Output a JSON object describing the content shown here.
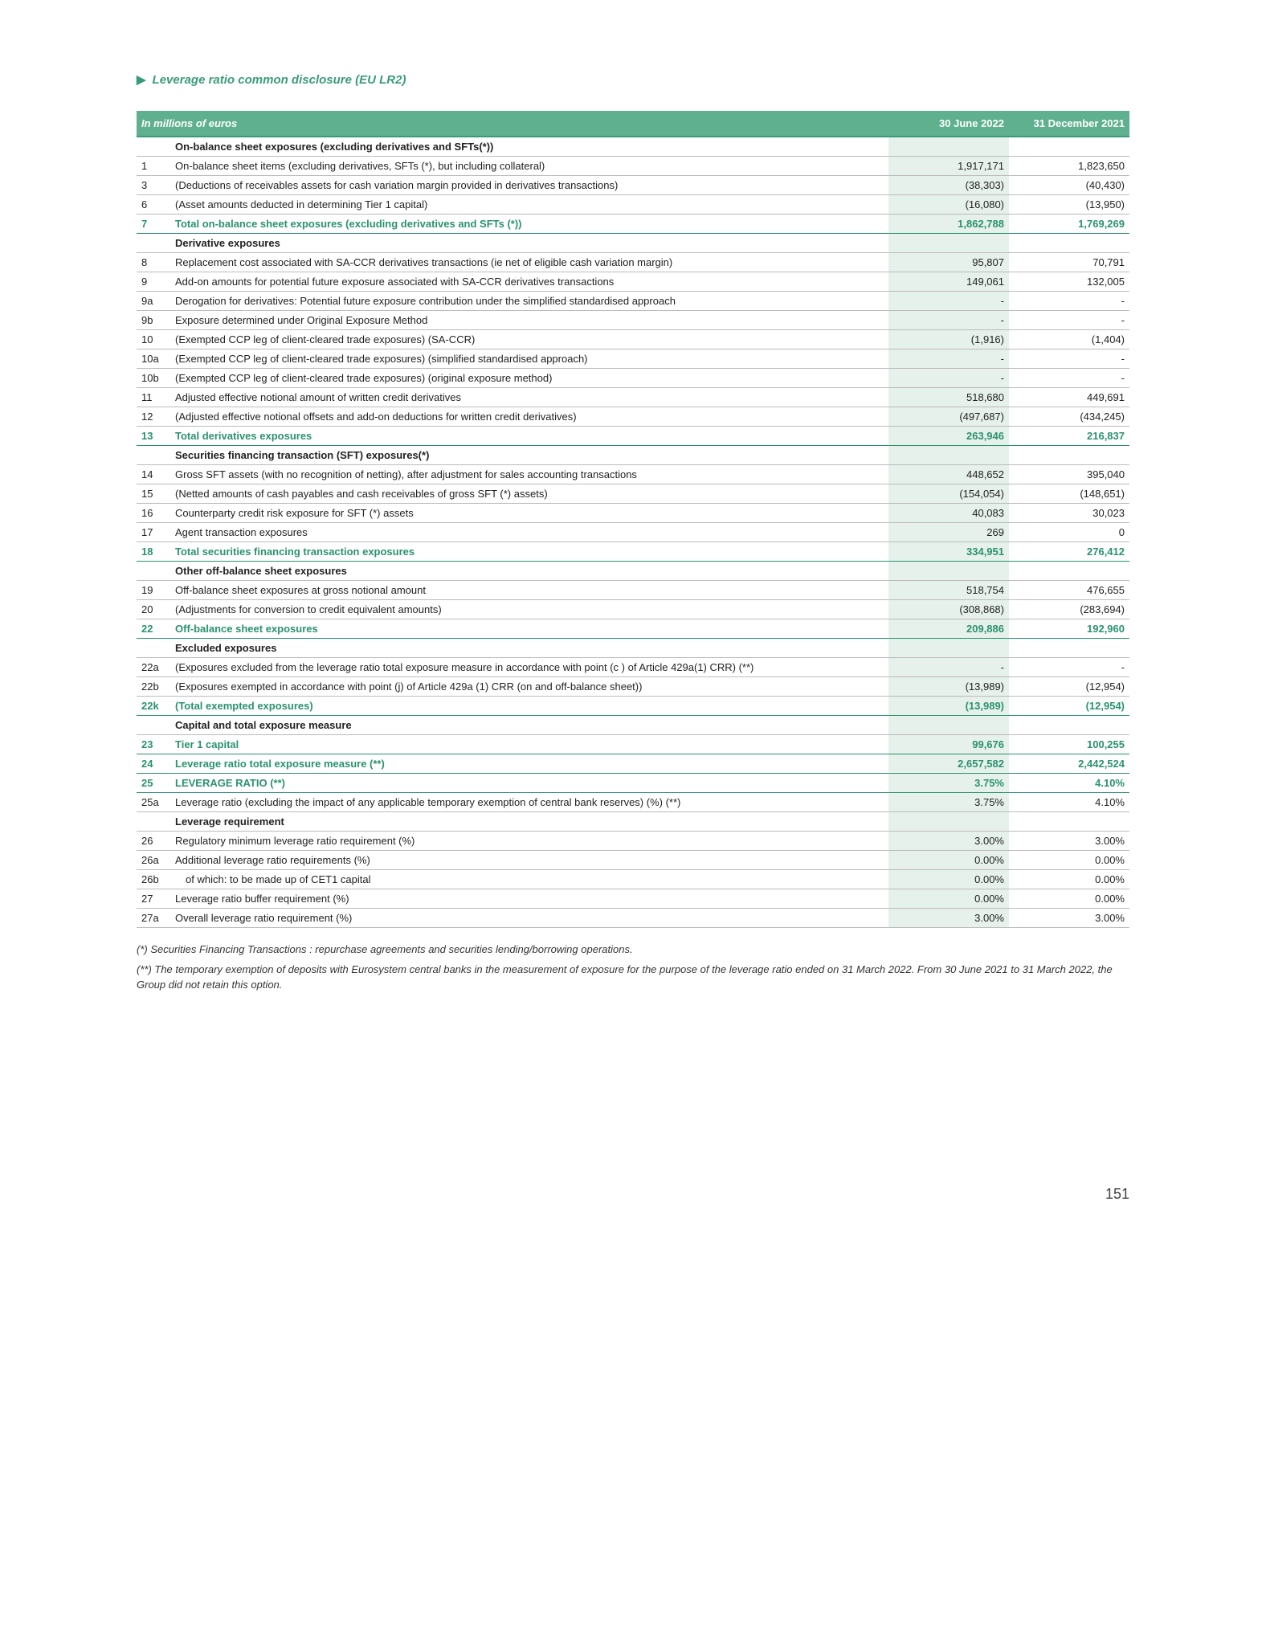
{
  "title": "Leverage ratio common disclosure (EU LR2)",
  "header": {
    "units": "In millions of euros",
    "col_a": "30 June 2022",
    "col_b": "31 December 2021"
  },
  "footnotes": {
    "a": "(*) Securities Financing Transactions : repurchase agreements and securities lending/borrowing operations.",
    "b": "(**) The temporary exemption of deposits with Eurosystem central banks in the measurement of exposure for the purpose of the leverage ratio ended on 31 March 2022. From 30 June 2021 to 31 March 2022, the Group did not retain this option."
  },
  "page_number": "151",
  "rows": [
    {
      "type": "section",
      "num": "",
      "label": "On-balance sheet exposures (excluding derivatives and SFTs(*))",
      "a": "",
      "b": ""
    },
    {
      "type": "data",
      "num": "1",
      "label": "On-balance sheet items (excluding derivatives, SFTs (*), but including collateral)",
      "a": "1,917,171",
      "b": "1,823,650"
    },
    {
      "type": "data",
      "num": "3",
      "label": "(Deductions of receivables assets for cash variation margin provided in derivatives transactions)",
      "a": "(38,303)",
      "b": "(40,430)"
    },
    {
      "type": "data",
      "num": "6",
      "label": "(Asset amounts deducted in determining Tier 1 capital)",
      "a": "(16,080)",
      "b": "(13,950)"
    },
    {
      "type": "total",
      "num": "7",
      "label": "Total on-balance sheet exposures (excluding derivatives and SFTs (*))",
      "a": "1,862,788",
      "b": "1,769,269"
    },
    {
      "type": "section",
      "num": "",
      "label": "Derivative exposures",
      "a": "",
      "b": ""
    },
    {
      "type": "data",
      "num": "8",
      "label": "Replacement cost associated with SA-CCR derivatives transactions (ie net of eligible cash variation margin)",
      "a": "95,807",
      "b": "70,791"
    },
    {
      "type": "data",
      "num": "9",
      "label": "Add-on amounts for potential future exposure associated with  SA-CCR derivatives transactions",
      "a": "149,061",
      "b": "132,005"
    },
    {
      "type": "data",
      "num": "9a",
      "label": "Derogation for derivatives: Potential future exposure contribution under the simplified standardised approach",
      "a": "-",
      "b": "-"
    },
    {
      "type": "data",
      "num": "9b",
      "label": "Exposure determined under Original Exposure Method",
      "a": "-",
      "b": "-"
    },
    {
      "type": "data",
      "num": "10",
      "label": "(Exempted CCP leg of client-cleared trade exposures) (SA-CCR)",
      "a": "(1,916)",
      "b": "(1,404)"
    },
    {
      "type": "data",
      "num": "10a",
      "label": "(Exempted CCP leg of client-cleared trade exposures) (simplified standardised approach)",
      "a": "-",
      "b": "-"
    },
    {
      "type": "data",
      "num": "10b",
      "label": "(Exempted CCP leg of client-cleared trade exposures) (original exposure method)",
      "a": "-",
      "b": "-"
    },
    {
      "type": "data",
      "num": "11",
      "label": "Adjusted effective notional amount of written credit derivatives",
      "a": "518,680",
      "b": "449,691"
    },
    {
      "type": "data",
      "num": "12",
      "label": "(Adjusted effective notional offsets and add-on deductions for written credit derivatives)",
      "a": "(497,687)",
      "b": "(434,245)"
    },
    {
      "type": "total",
      "num": "13",
      "label": "Total derivatives exposures",
      "a": "263,946",
      "b": "216,837"
    },
    {
      "type": "section",
      "num": "",
      "label": "Securities financing transaction (SFT) exposures(*)",
      "a": "",
      "b": ""
    },
    {
      "type": "data",
      "num": "14",
      "label": "Gross SFT assets (with no recognition of netting), after adjustment for sales accounting transactions",
      "a": "448,652",
      "b": "395,040"
    },
    {
      "type": "data",
      "num": "15",
      "label": "(Netted amounts of cash payables and cash receivables of gross SFT (*) assets)",
      "a": "(154,054)",
      "b": "(148,651)"
    },
    {
      "type": "data",
      "num": "16",
      "label": "Counterparty credit risk exposure for SFT (*) assets",
      "a": "40,083",
      "b": "30,023"
    },
    {
      "type": "data",
      "num": "17",
      "label": "Agent transaction exposures",
      "a": "269",
      "b": "0"
    },
    {
      "type": "total",
      "num": "18",
      "label": "Total securities financing transaction exposures",
      "a": "334,951",
      "b": "276,412"
    },
    {
      "type": "section",
      "num": "",
      "label": "Other off-balance sheet exposures",
      "a": "",
      "b": ""
    },
    {
      "type": "data",
      "num": "19",
      "label": "Off-balance sheet exposures at gross notional amount",
      "a": "518,754",
      "b": "476,655"
    },
    {
      "type": "data",
      "num": "20",
      "label": "(Adjustments for conversion to credit equivalent amounts)",
      "a": "(308,868)",
      "b": "(283,694)"
    },
    {
      "type": "total",
      "num": "22",
      "label": "Off-balance sheet exposures",
      "a": "209,886",
      "b": "192,960"
    },
    {
      "type": "section",
      "num": "",
      "label": "Excluded exposures",
      "a": "",
      "b": ""
    },
    {
      "type": "data",
      "num": "22a",
      "label": "(Exposures excluded from the leverage ratio total exposure measure in accordance with point (c ) of Article 429a(1) CRR) (**)",
      "a": "-",
      "b": "-"
    },
    {
      "type": "data",
      "num": "22b",
      "label": "(Exposures exempted in accordance with point (j) of Article 429a (1) CRR (on and off-balance sheet))",
      "a": "(13,989)",
      "b": "(12,954)"
    },
    {
      "type": "total",
      "num": "22k",
      "label": "(Total exempted exposures)",
      "a": "(13,989)",
      "b": "(12,954)"
    },
    {
      "type": "section",
      "num": "",
      "label": "Capital and total exposure measure",
      "a": "",
      "b": ""
    },
    {
      "type": "total",
      "num": "23",
      "label": "Tier 1 capital",
      "a": "99,676",
      "b": "100,255"
    },
    {
      "type": "total",
      "num": "24",
      "label": "Leverage ratio total exposure measure (**)",
      "a": "2,657,582",
      "b": "2,442,524"
    },
    {
      "type": "total",
      "num": "25",
      "label": "LEVERAGE RATIO (**)",
      "a": "3.75%",
      "b": "4.10%"
    },
    {
      "type": "data",
      "num": "25a",
      "label": "Leverage ratio (excluding the impact of any applicable temporary exemption of central bank reserves) (%) (**)",
      "a": "3.75%",
      "b": "4.10%"
    },
    {
      "type": "section",
      "num": "",
      "label": "Leverage requirement",
      "a": "",
      "b": ""
    },
    {
      "type": "data",
      "num": "26",
      "label": "Regulatory minimum leverage ratio requirement (%)",
      "a": "3.00%",
      "b": "3.00%"
    },
    {
      "type": "data",
      "num": "26a",
      "label": "Additional leverage ratio requirements (%)",
      "a": "0.00%",
      "b": "0.00%"
    },
    {
      "type": "data",
      "num": "26b",
      "label": " of which: to be made up of CET1 capital",
      "a": "0.00%",
      "b": "0.00%"
    },
    {
      "type": "data",
      "num": "27",
      "label": "Leverage ratio buffer requirement (%)",
      "a": "0.00%",
      "b": "0.00%"
    },
    {
      "type": "data",
      "num": "27a",
      "label": "Overall leverage ratio requirement (%)",
      "a": "3.00%",
      "b": "3.00%"
    }
  ]
}
